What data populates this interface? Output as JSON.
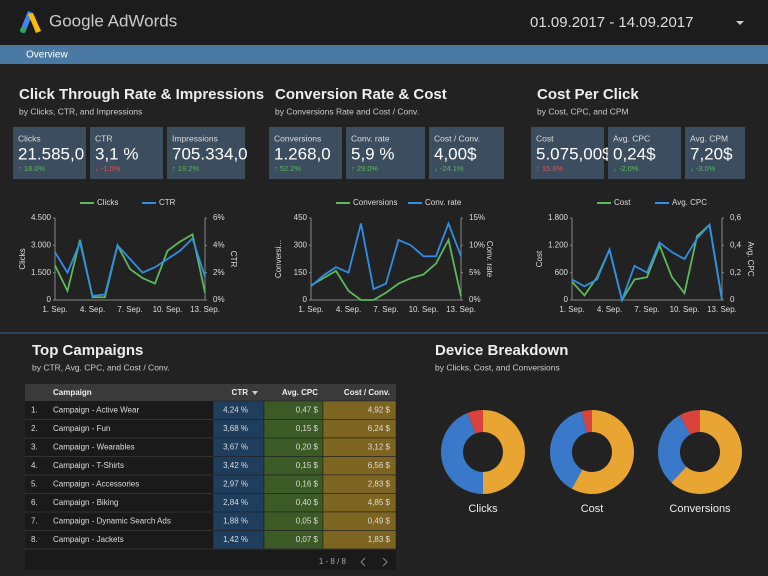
{
  "header": {
    "logo": "Google AdWords",
    "date_range": "01.09.2017 - 14.09.2017"
  },
  "tab": "Overview",
  "panels": [
    {
      "title": "Click Through Rate & Impressions",
      "subtitle": "by Clicks, CTR, and Impressions",
      "kpis": [
        {
          "label": "Clicks",
          "value": "21.585,0",
          "change": "↑ 18.0%",
          "color": "#5cb85c"
        },
        {
          "label": "CTR",
          "value": "3,1 %",
          "change": "↓ -1.0%",
          "color": "#e05555"
        },
        {
          "label": "Impressions",
          "value": "705.334,0",
          "change": "↑ 19.2%",
          "color": "#5cb85c"
        }
      ],
      "chart_data": {
        "type": "line",
        "categories": [
          "1. Sep.",
          null,
          null,
          "4. Sep.",
          null,
          null,
          "7. Sep.",
          null,
          null,
          "10. Sep.",
          null,
          null,
          "13. Sep."
        ],
        "ylabel": "Clicks",
        "y2label": "CTR",
        "ylim": [
          0,
          4500
        ],
        "yticks": [
          0,
          {
            "value": 1500,
            "label": "1.500"
          },
          {
            "value": 3000,
            "label": "3.000"
          },
          {
            "value": 4500,
            "label": "4.500"
          }
        ],
        "y2lim": [
          0,
          6
        ],
        "y2ticks": [
          {
            "value": 0,
            "label": "0%"
          },
          {
            "value": 2,
            "label": "2%"
          },
          {
            "value": 4,
            "label": "4%"
          },
          {
            "value": 6,
            "label": "6%"
          }
        ],
        "series": [
          {
            "name": "Clicks",
            "color": "#5cb85c",
            "values": [
              1900,
              500,
              3300,
              150,
              150,
              3000,
              1700,
              1200,
              900,
              2700,
              3200,
              3600,
              400
            ]
          },
          {
            "name": "CTR",
            "color": "#2f8fe6",
            "axis": "y2",
            "values": [
              3.5,
              2.0,
              4.2,
              0.3,
              0.4,
              4.0,
              3.0,
              2.0,
              2.4,
              3.0,
              3.6,
              4.5,
              1.7
            ]
          }
        ]
      }
    },
    {
      "title": "Conversion Rate & Cost",
      "subtitle": "by Conversions Rate and Cost / Conv.",
      "kpis": [
        {
          "label": "Conversions",
          "value": "1.268,0",
          "change": "↑ 52.2%",
          "color": "#5cb85c"
        },
        {
          "label": "Conv. rate",
          "value": "5,9 %",
          "change": "↑ 29.0%",
          "color": "#5cb85c"
        },
        {
          "label": "Cost / Conv.",
          "value": "4,00$",
          "change": "↓ -24.1%",
          "color": "#5cb85c"
        }
      ],
      "chart_data": {
        "type": "line",
        "categories": [
          "1. Sep.",
          null,
          null,
          "4. Sep.",
          null,
          null,
          "7. Sep.",
          null,
          null,
          "10. Sep.",
          null,
          null,
          "13. Sep."
        ],
        "ylabel": "Conversi...",
        "y2label": "Conv. rate",
        "ylim": [
          0,
          450
        ],
        "yticks": [
          0,
          150,
          300,
          450
        ],
        "y2lim": [
          0,
          15
        ],
        "y2ticks": [
          {
            "value": 0,
            "label": "0%"
          },
          {
            "value": 5,
            "label": "5%"
          },
          {
            "value": 10,
            "label": "10%"
          },
          {
            "value": 15,
            "label": "15%"
          }
        ],
        "series": [
          {
            "name": "Conversions",
            "color": "#5cb85c",
            "values": [
              80,
              120,
              160,
              50,
              0,
              0,
              40,
              90,
              120,
              140,
              200,
              330,
              20
            ]
          },
          {
            "name": "Conv. rate",
            "color": "#2f8fe6",
            "axis": "y2",
            "values": [
              2.5,
              4.5,
              6,
              5,
              14,
              2,
              3,
              11,
              10,
              8,
              8,
              14,
              8
            ]
          }
        ]
      }
    },
    {
      "title": "Cost Per Click",
      "subtitle": "by Cost, CPC, and CPM",
      "kpis": [
        {
          "label": "Cost",
          "value": "5.075,00$",
          "change": "↑ 15.6%",
          "color": "#e05555"
        },
        {
          "label": "Avg. CPC",
          "value": "0,24$",
          "change": "↓ -2.0%",
          "color": "#5cb85c"
        },
        {
          "label": "Avg. CPM",
          "value": "7,20$",
          "change": "↓ -3.0%",
          "color": "#5cb85c"
        }
      ],
      "chart_data": {
        "type": "line",
        "categories": [
          "1. Sep.",
          null,
          null,
          "4. Sep.",
          null,
          null,
          "7. Sep.",
          null,
          null,
          "10. Sep.",
          null,
          null,
          "13. Sep."
        ],
        "ylabel": "Cost",
        "y2label": "Avg. CPC",
        "ylim": [
          0,
          1800
        ],
        "yticks": [
          0,
          600,
          {
            "value": 1200,
            "label": "1.200"
          },
          {
            "value": 1800,
            "label": "1.800"
          }
        ],
        "y2lim": [
          0,
          0.6
        ],
        "y2ticks": [
          0,
          {
            "value": 0.2,
            "label": "0,2"
          },
          {
            "value": 0.4,
            "label": "0,4"
          },
          {
            "value": 0.6,
            "label": "0,6"
          }
        ],
        "series": [
          {
            "name": "Cost",
            "color": "#5cb85c",
            "values": [
              400,
              100,
              500,
              1100,
              0,
              450,
              500,
              1200,
              500,
              150,
              1400,
              1650,
              0
            ]
          },
          {
            "name": "Avg. CPC",
            "color": "#2f8fe6",
            "axis": "y2",
            "values": [
              0.15,
              0.1,
              0.15,
              0.37,
              0,
              0.25,
              0.2,
              0.42,
              0.35,
              0.3,
              0.45,
              0.55,
              0
            ]
          }
        ]
      }
    }
  ],
  "table": {
    "title": "Top Campaigns",
    "subtitle": "by CTR, Avg. CPC, and Cost / Conv.",
    "columns": [
      "Campaign",
      "CTR",
      "Avg. CPC",
      "Cost / Conv."
    ],
    "rows": [
      [
        "1.",
        "Campaign - Active Wear",
        "4,24 %",
        "0,47 $",
        "4,92 $"
      ],
      [
        "2.",
        "Campaign - Fun",
        "3,68 %",
        "0,15 $",
        "6,24 $"
      ],
      [
        "3.",
        "Campaign - Wearables",
        "3,67 %",
        "0,20 $",
        "3,12 $"
      ],
      [
        "4.",
        "Campaign - T-Shirts",
        "3,42 %",
        "0,15 $",
        "6,56 $"
      ],
      [
        "5.",
        "Campaign - Accessories",
        "2,97 %",
        "0,16 $",
        "2,83 $"
      ],
      [
        "6.",
        "Campaign - Biking",
        "2,84 %",
        "0,40 $",
        "4,85 $"
      ],
      [
        "7.",
        "Campaign - Dynamic Search Ads",
        "1,88 %",
        "0,05 $",
        "0,49 $"
      ],
      [
        "8.",
        "Campaign - Jackets",
        "1,42 %",
        "0,07 $",
        "1,83 $"
      ]
    ],
    "pagination": "1 - 8 / 8"
  },
  "devices": {
    "title": "Device Breakdown",
    "subtitle": "by Clicks, Cost, and Conversions",
    "chart_data": [
      {
        "type": "pie",
        "title": "Clicks",
        "values": [
          50,
          44,
          6
        ],
        "colors": [
          "#e8a531",
          "#3a78c9",
          "#d9433b"
        ]
      },
      {
        "type": "pie",
        "title": "Cost",
        "values": [
          58,
          38,
          4
        ],
        "colors": [
          "#e8a531",
          "#3a78c9",
          "#d9433b"
        ]
      },
      {
        "type": "pie",
        "title": "Conversions",
        "values": [
          62,
          30,
          8
        ],
        "colors": [
          "#e8a531",
          "#3a78c9",
          "#d9433b"
        ]
      }
    ]
  }
}
